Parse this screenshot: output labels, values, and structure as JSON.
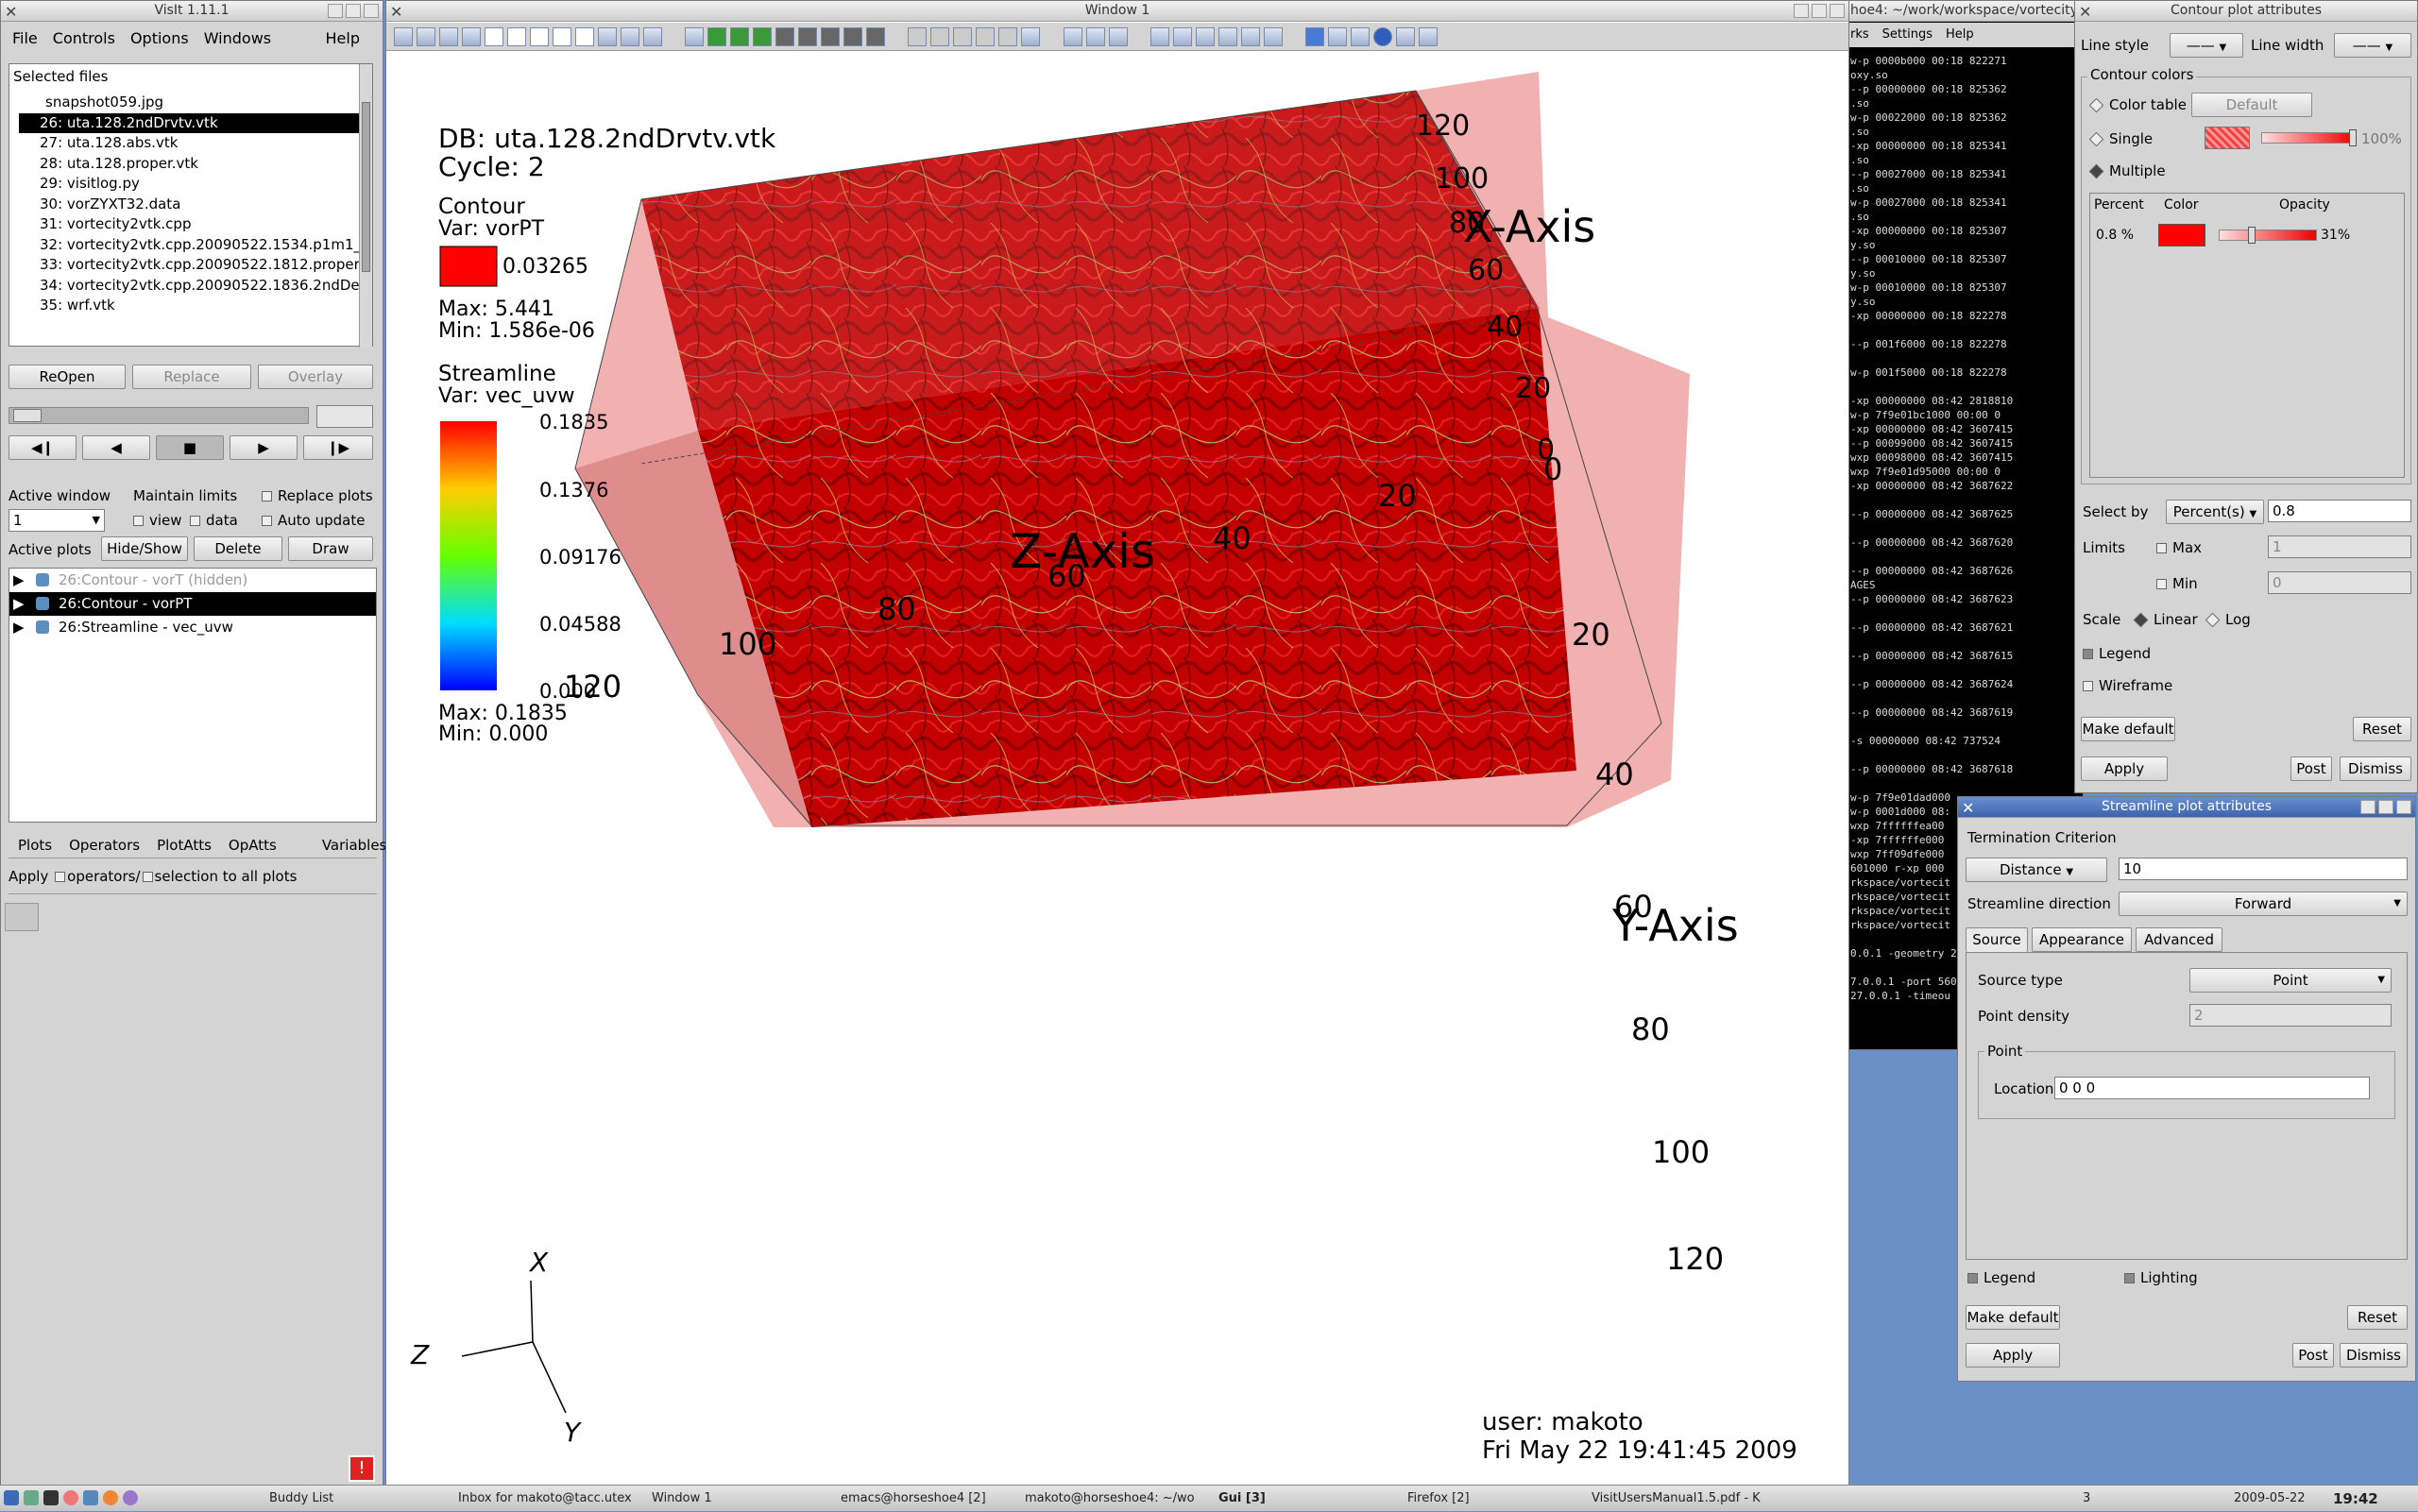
{
  "colors": {
    "accent": "#ff0000",
    "selection": "#000000",
    "desktop": "#6b8fc7"
  },
  "main": {
    "title": "VisIt 1.11.1",
    "menu": [
      "File",
      "Controls",
      "Options",
      "Windows",
      "Help"
    ],
    "selected_files_label": "Selected files",
    "files": [
      "snapshot059.jpg",
      "26: uta.128.2ndDrvtv.vtk",
      "27: uta.128.abs.vtk",
      "28: uta.128.proper.vtk",
      "29: visitlog.py",
      "30: vorZYXT32.data",
      "31: vortecity2vtk.cpp",
      "32: vortecity2vtk.cpp.20090522.1534.p1m1_deriv",
      "33: vortecity2vtk.cpp.20090522.1812.proper",
      "34: vortecity2vtk.cpp.20090522.1836.2ndDerivitiv",
      "35: wrf.vtk"
    ],
    "reopen": "ReOpen",
    "replace": "Replace",
    "overlay": "Overlay",
    "active_window": "Active window",
    "maintain_limits": "Maintain limits",
    "replace_plots": "Replace plots",
    "active_window_value": "1",
    "view": "view",
    "data": "data",
    "auto_update": "Auto update",
    "active_plots": "Active plots",
    "hide_show": "Hide/Show",
    "delete": "Delete",
    "draw": "Draw",
    "plots": [
      "26:Contour - vorT (hidden)",
      "26:Contour - vorPT",
      "26:Streamline - vec_uvw"
    ],
    "bottom_tabs": [
      "Plots",
      "Operators",
      "PlotAtts",
      "OpAtts",
      "Variables"
    ],
    "apply_text": "Apply",
    "operators_text": "operators/",
    "selection_text": "selection to all plots"
  },
  "viewer": {
    "title": "Window 1",
    "db": "DB: uta.128.2ndDrvtv.vtk",
    "cycle": "Cycle: 2",
    "contour": {
      "title": "Contour",
      "var": "Var: vorPT",
      "value": "0.03265",
      "max": "Max:  5.441",
      "min": "Min:  1.586e-06"
    },
    "streamline": {
      "title": "Streamline",
      "var": "Var: vec_uvw",
      "ticks": [
        "0.1835",
        "0.1376",
        "0.09176",
        "0.04588",
        "0.000"
      ],
      "max": "Max:  0.1835",
      "min": "Min:  0.000"
    },
    "x_axis": "X-Axis",
    "y_axis": "Y-Axis",
    "z_axis": "Z-Axis",
    "x_ticks": [
      "120",
      "100",
      "80",
      "60",
      "40",
      "20",
      "0"
    ],
    "y_ticks": [
      "0",
      "20",
      "40",
      "60",
      "80",
      "100",
      "120"
    ],
    "z_ticks": [
      "20",
      "40",
      "60",
      "80",
      "100",
      "120"
    ],
    "triad": {
      "x": "X",
      "y": "Y",
      "z": "Z"
    },
    "user": "user: makoto",
    "date": "Fri May 22 19:41:45 2009"
  },
  "terminal": {
    "title": "hoe4: ~/work/workspace/vortecity",
    "menu": [
      "rks",
      "Settings",
      "Help"
    ],
    "lines": [
      "w-p 0000b000 00:18 822271",
      "oxy.so",
      "--p 00000000 00:18 825362",
      ".so",
      "w-p 00022000 00:18 825362",
      ".so",
      "-xp 00000000 00:18 825341",
      ".so",
      "--p 00027000 00:18 825341",
      ".so",
      "w-p 00027000 00:18 825341",
      ".so",
      "-xp 00000000 00:18 825307",
      "y.so",
      "--p 00010000 00:18 825307",
      "y.so",
      "w-p 00010000 00:18 825307",
      "y.so",
      "-xp 00000000 00:18 822278",
      "",
      "--p 001f6000 00:18 822278",
      "",
      "w-p 001f5000 00:18 822278",
      "",
      "-xp 00000000 08:42 2818810",
      "w-p 7f9e01bc1000 00:00 0",
      "-xp 00000000 08:42 3607415",
      "--p 00099000 08:42 3607415",
      "wxp 00098000 08:42 3607415",
      "wxp 7f9e01d95000 00:00 0",
      "-xp 00000000 08:42 3687622",
      "",
      "--p 00000000 08:42 3687625",
      "",
      "--p 00000000 08:42 3687620",
      "",
      "--p 00000000 08:42 3687626",
      "AGES",
      "--p 00000000 08:42 3687623",
      "",
      "--p 00000000 08:42 3687621",
      "",
      "--p 00000000 08:42 3687615",
      "",
      "--p 00000000 08:42 3687624",
      "",
      "--p 00000000 08:42 3687619",
      "",
      "-s 00000000 08:42 737524",
      "",
      "--p 00000000 08:42 3687618",
      "",
      "w-p 7f9e01dad000",
      "w-p 0001d000 08:",
      "wxp 7ffffffea00",
      "-xp 7ffffffe000",
      "wxp 7ff09dfe000",
      "601000 r-xp 000",
      "rkspace/vortecit",
      "rkspace/vortecit",
      "rkspace/vortecit",
      "rkspace/vortecit",
      "",
      "0.0.1 -geometry 2",
      "",
      "7.0.0.1 -port 560",
      "27.0.0.1 -timeou"
    ]
  },
  "contour_atts": {
    "title": "Contour plot attributes",
    "line_style": "Line style",
    "line_width": "Line width",
    "contour_colors": "Contour colors",
    "color_table": "Color table",
    "default": "Default",
    "single": "Single",
    "single_pct": "100%",
    "multiple": "Multiple",
    "headers": [
      "Percent",
      "Color",
      "Opacity"
    ],
    "row": {
      "percent": "0.8 %",
      "opacity": "31%",
      "opacity_value": 0.31
    },
    "select_by": "Select by",
    "select_mode": "Percent(s)",
    "select_value": "0.8",
    "limits": "Limits",
    "max": "Max",
    "max_value": "1",
    "min": "Min",
    "min_value": "0",
    "scale": "Scale",
    "linear": "Linear",
    "log": "Log",
    "legend": "Legend",
    "wireframe": "Wireframe",
    "make_default": "Make default",
    "reset": "Reset",
    "apply": "Apply",
    "post": "Post",
    "dismiss": "Dismiss"
  },
  "stream_atts": {
    "title": "Streamline plot attributes",
    "termination": "Termination Criterion",
    "term_type": "Distance",
    "term_value": "10",
    "direction_label": "Streamline direction",
    "direction": "Forward",
    "tabs": [
      "Source",
      "Appearance",
      "Advanced"
    ],
    "source_type_label": "Source type",
    "source_type": "Point",
    "point_density_label": "Point density",
    "point_density": "2",
    "point_group": "Point",
    "location_label": "Location",
    "location": "0 0 0",
    "legend": "Legend",
    "lighting": "Lighting",
    "make_default": "Make default",
    "reset": "Reset",
    "apply": "Apply",
    "post": "Post",
    "dismiss": "Dismiss"
  },
  "taskbar": {
    "items": [
      "Buddy List",
      "Inbox for makoto@tacc.utex",
      "Window 1",
      "emacs@horseshoe4 [2]",
      "makoto@horseshoe4: ~/wo",
      "Gui [3]",
      "Firefox [2]",
      "VisitUsersManual1.5.pdf - K"
    ],
    "workspace": "3",
    "date": "2009-05-22",
    "time": "19:42"
  }
}
